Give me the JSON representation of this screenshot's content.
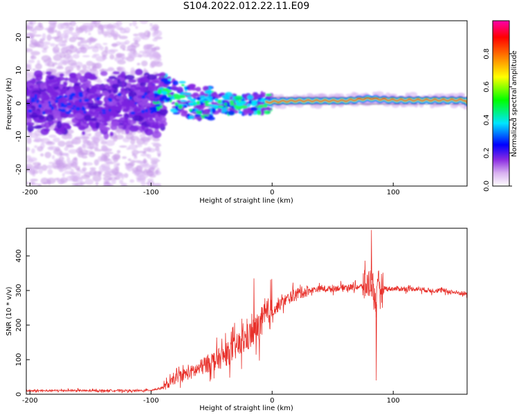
{
  "title": "S104.2022.012.22.11.E09",
  "chart_data": [
    {
      "type": "heatmap",
      "xlabel": "Height of straight line (km)",
      "ylabel": "Frequency (Hz)",
      "xlim": [
        -203,
        161
      ],
      "ylim": [
        -25,
        25
      ],
      "xticks": [
        -200,
        -100,
        0,
        100
      ],
      "yticks": [
        -20,
        -10,
        0,
        10,
        20
      ],
      "colorbar": {
        "label": "Normalized spectral amplitude",
        "range": [
          0,
          1
        ],
        "ticks": [
          "0.0",
          "0.2",
          "0.4",
          "0.6",
          "0.8"
        ],
        "colors": [
          "#ffffff",
          "#d8b0f0",
          "#8a2be2",
          "#0000ff",
          "#00e5ff",
          "#00ff00",
          "#ffff00",
          "#ff8000",
          "#ff0000",
          "#ff00aa"
        ]
      },
      "ridge": {
        "description_free_values": true,
        "x": [
          -200,
          -150,
          -100,
          -90,
          -80,
          -60,
          -40,
          -20,
          0,
          20,
          40,
          60,
          80,
          100,
          120,
          140,
          160
        ],
        "y": [
          0,
          0,
          1,
          4,
          2,
          0,
          0,
          -0.5,
          0.5,
          0.8,
          0.8,
          0.8,
          1.5,
          1.0,
          1.0,
          1.0,
          1.0
        ]
      }
    },
    {
      "type": "line",
      "xlabel": "Height of straight line (km)",
      "ylabel": "SNR (10 * v/v)",
      "xlim": [
        -203,
        161
      ],
      "ylim": [
        0,
        480
      ],
      "xticks": [
        -200,
        -100,
        0,
        100
      ],
      "yticks": [
        0,
        100,
        200,
        300,
        400
      ],
      "color": "#e8302a",
      "series": [
        {
          "name": "SNR",
          "x": [
            -203,
            -190,
            -170,
            -150,
            -130,
            -110,
            -100,
            -95,
            -90,
            -85,
            -80,
            -75,
            -70,
            -65,
            -60,
            -55,
            -50,
            -45,
            -40,
            -35,
            -30,
            -25,
            -20,
            -15,
            -10,
            -5,
            0,
            5,
            10,
            15,
            20,
            25,
            30,
            40,
            50,
            60,
            70,
            75,
            80,
            82,
            84,
            86,
            88,
            90,
            95,
            100,
            110,
            120,
            130,
            140,
            150,
            161
          ],
          "values": [
            10,
            10,
            11,
            10,
            11,
            10,
            12,
            15,
            20,
            30,
            45,
            55,
            60,
            65,
            75,
            85,
            95,
            100,
            110,
            120,
            135,
            150,
            165,
            180,
            200,
            225,
            240,
            255,
            270,
            280,
            290,
            295,
            300,
            305,
            305,
            310,
            310,
            312,
            320,
            330,
            300,
            260,
            320,
            310,
            305,
            305,
            305,
            305,
            300,
            300,
            295,
            290
          ]
        }
      ],
      "peak_annotations": [
        {
          "x": -15,
          "y": 335
        },
        {
          "x": 82,
          "y": 475
        },
        {
          "x": 86,
          "y": 40
        }
      ]
    }
  ]
}
